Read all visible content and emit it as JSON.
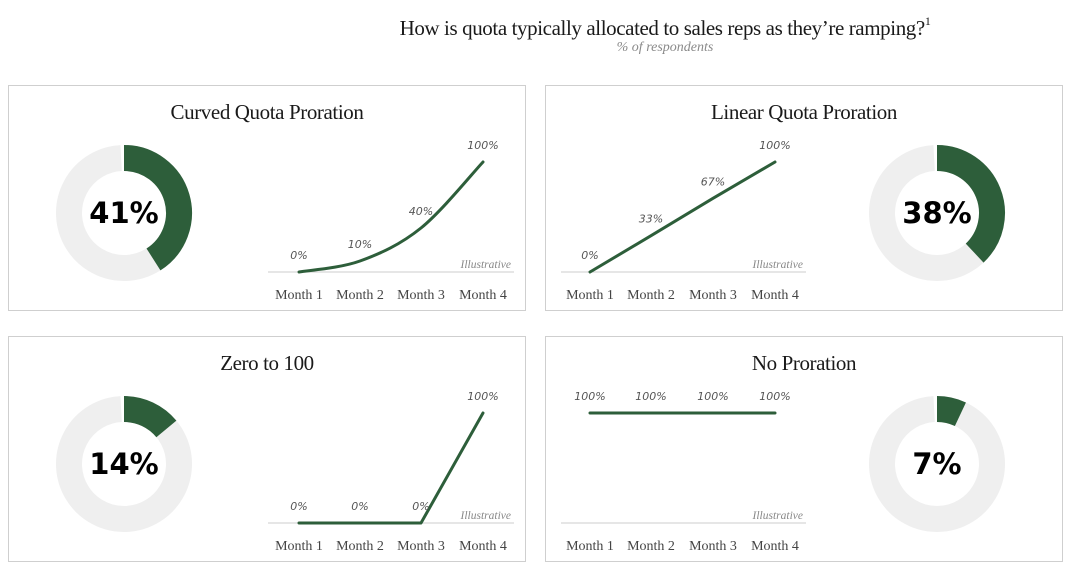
{
  "title": "How is quota typically allocated to sales reps as they’re ramping?",
  "title_footnote": "1",
  "subtitle": "% of respondents",
  "colors": {
    "accent": "#2d5e3a",
    "track": "#efefef",
    "axis": "#cccccc"
  },
  "chart_data": [
    {
      "type": "pie",
      "subtype": "donut",
      "panel_title": "Curved Quota Proration",
      "share_percent": 41,
      "share_label": "41%",
      "donut_side": "left",
      "line": {
        "type": "line",
        "categories": [
          "Month 1",
          "Month 2",
          "Month 3",
          "Month 4"
        ],
        "values": [
          0,
          10,
          40,
          100
        ],
        "value_labels": [
          "0%",
          "10%",
          "40%",
          "100%"
        ],
        "shape": "curved",
        "note": "Illustrative"
      }
    },
    {
      "type": "pie",
      "subtype": "donut",
      "panel_title": "Linear Quota Proration",
      "share_percent": 38,
      "share_label": "38%",
      "donut_side": "right",
      "line": {
        "type": "line",
        "categories": [
          "Month 1",
          "Month 2",
          "Month 3",
          "Month 4"
        ],
        "values": [
          0,
          33,
          67,
          100
        ],
        "value_labels": [
          "0%",
          "33%",
          "67%",
          "100%"
        ],
        "shape": "linear",
        "note": "Illustrative"
      }
    },
    {
      "type": "pie",
      "subtype": "donut",
      "panel_title": "Zero to 100",
      "share_percent": 14,
      "share_label": "14%",
      "donut_side": "left",
      "line": {
        "type": "line",
        "categories": [
          "Month 1",
          "Month 2",
          "Month 3",
          "Month 4"
        ],
        "values": [
          0,
          0,
          0,
          100
        ],
        "value_labels": [
          "0%",
          "0%",
          "0%",
          "100%"
        ],
        "shape": "linear",
        "note": "Illustrative"
      }
    },
    {
      "type": "pie",
      "subtype": "donut",
      "panel_title": "No Proration",
      "share_percent": 7,
      "share_label": "7%",
      "donut_side": "right",
      "line": {
        "type": "line",
        "categories": [
          "Month 1",
          "Month 2",
          "Month 3",
          "Month 4"
        ],
        "values": [
          100,
          100,
          100,
          100
        ],
        "value_labels": [
          "100%",
          "100%",
          "100%",
          "100%"
        ],
        "shape": "linear",
        "note": "Illustrative"
      }
    }
  ]
}
